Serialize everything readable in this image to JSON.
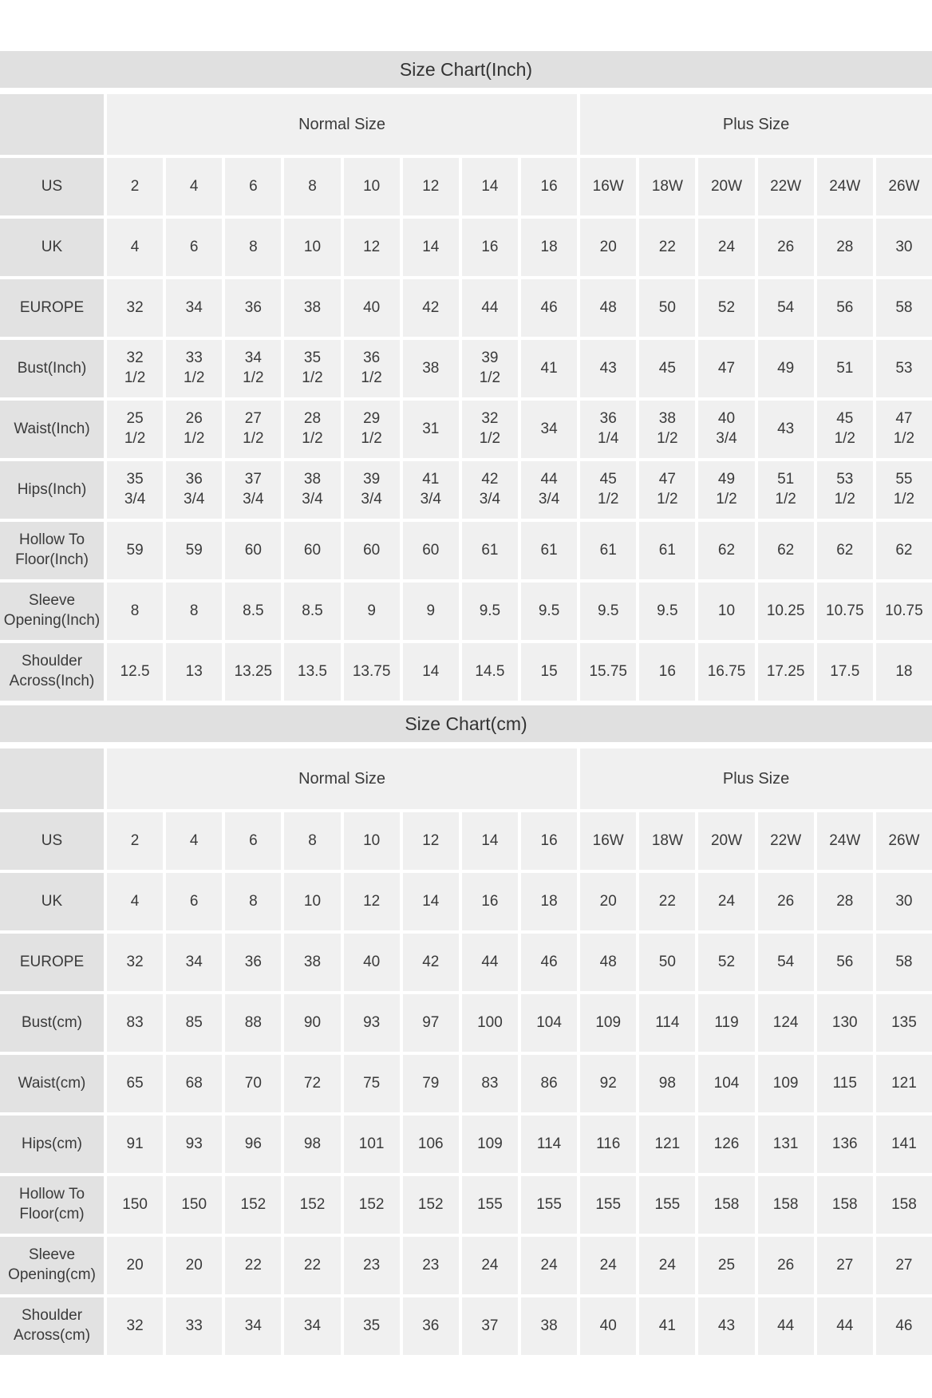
{
  "chart_data": [
    {
      "type": "table",
      "title": "Size Chart(Inch)",
      "column_groups": [
        {
          "label": "Normal Size",
          "span": 8
        },
        {
          "label": "Plus Size",
          "span": 6
        }
      ],
      "rows": [
        {
          "label": "US",
          "values": [
            "2",
            "4",
            "6",
            "8",
            "10",
            "12",
            "14",
            "16",
            "16W",
            "18W",
            "20W",
            "22W",
            "24W",
            "26W"
          ]
        },
        {
          "label": "UK",
          "values": [
            "4",
            "6",
            "8",
            "10",
            "12",
            "14",
            "16",
            "18",
            "20",
            "22",
            "24",
            "26",
            "28",
            "30"
          ]
        },
        {
          "label": "EUROPE",
          "values": [
            "32",
            "34",
            "36",
            "38",
            "40",
            "42",
            "44",
            "46",
            "48",
            "50",
            "52",
            "54",
            "56",
            "58"
          ]
        },
        {
          "label": "Bust(Inch)",
          "values": [
            "32\n1/2",
            "33\n1/2",
            "34\n1/2",
            "35\n1/2",
            "36\n1/2",
            "38",
            "39\n1/2",
            "41",
            "43",
            "45",
            "47",
            "49",
            "51",
            "53"
          ]
        },
        {
          "label": "Waist(Inch)",
          "values": [
            "25\n1/2",
            "26\n1/2",
            "27\n1/2",
            "28\n1/2",
            "29\n1/2",
            "31",
            "32\n1/2",
            "34",
            "36\n1/4",
            "38\n1/2",
            "40\n3/4",
            "43",
            "45\n1/2",
            "47\n1/2"
          ]
        },
        {
          "label": "Hips(Inch)",
          "values": [
            "35\n3/4",
            "36\n3/4",
            "37\n3/4",
            "38\n3/4",
            "39\n3/4",
            "41\n3/4",
            "42\n3/4",
            "44\n3/4",
            "45\n1/2",
            "47\n1/2",
            "49\n1/2",
            "51\n1/2",
            "53\n1/2",
            "55\n1/2"
          ]
        },
        {
          "label": "Hollow To Floor(Inch)",
          "values": [
            "59",
            "59",
            "60",
            "60",
            "60",
            "60",
            "61",
            "61",
            "61",
            "61",
            "62",
            "62",
            "62",
            "62"
          ]
        },
        {
          "label": "Sleeve Opening(Inch)",
          "values": [
            "8",
            "8",
            "8.5",
            "8.5",
            "9",
            "9",
            "9.5",
            "9.5",
            "9.5",
            "9.5",
            "10",
            "10.25",
            "10.75",
            "10.75"
          ]
        },
        {
          "label": "Shoulder Across(Inch)",
          "values": [
            "12.5",
            "13",
            "13.25",
            "13.5",
            "13.75",
            "14",
            "14.5",
            "15",
            "15.75",
            "16",
            "16.75",
            "17.25",
            "17.5",
            "18"
          ]
        }
      ]
    },
    {
      "type": "table",
      "title": "Size Chart(cm)",
      "column_groups": [
        {
          "label": "Normal Size",
          "span": 8
        },
        {
          "label": "Plus Size",
          "span": 6
        }
      ],
      "rows": [
        {
          "label": "US",
          "values": [
            "2",
            "4",
            "6",
            "8",
            "10",
            "12",
            "14",
            "16",
            "16W",
            "18W",
            "20W",
            "22W",
            "24W",
            "26W"
          ]
        },
        {
          "label": "UK",
          "values": [
            "4",
            "6",
            "8",
            "10",
            "12",
            "14",
            "16",
            "18",
            "20",
            "22",
            "24",
            "26",
            "28",
            "30"
          ]
        },
        {
          "label": "EUROPE",
          "values": [
            "32",
            "34",
            "36",
            "38",
            "40",
            "42",
            "44",
            "46",
            "48",
            "50",
            "52",
            "54",
            "56",
            "58"
          ]
        },
        {
          "label": "Bust(cm)",
          "values": [
            "83",
            "85",
            "88",
            "90",
            "93",
            "97",
            "100",
            "104",
            "109",
            "114",
            "119",
            "124",
            "130",
            "135"
          ]
        },
        {
          "label": "Waist(cm)",
          "values": [
            "65",
            "68",
            "70",
            "72",
            "75",
            "79",
            "83",
            "86",
            "92",
            "98",
            "104",
            "109",
            "115",
            "121"
          ]
        },
        {
          "label": "Hips(cm)",
          "values": [
            "91",
            "93",
            "96",
            "98",
            "101",
            "106",
            "109",
            "114",
            "116",
            "121",
            "126",
            "131",
            "136",
            "141"
          ]
        },
        {
          "label": "Hollow To Floor(cm)",
          "values": [
            "150",
            "150",
            "152",
            "152",
            "152",
            "152",
            "155",
            "155",
            "155",
            "155",
            "158",
            "158",
            "158",
            "158"
          ]
        },
        {
          "label": "Sleeve Opening(cm)",
          "values": [
            "20",
            "20",
            "22",
            "22",
            "23",
            "23",
            "24",
            "24",
            "24",
            "24",
            "25",
            "26",
            "27",
            "27"
          ]
        },
        {
          "label": "Shoulder Across(cm)",
          "values": [
            "32",
            "33",
            "34",
            "34",
            "35",
            "36",
            "37",
            "38",
            "40",
            "41",
            "43",
            "44",
            "44",
            "46"
          ]
        }
      ]
    }
  ],
  "colors": {
    "title_bar": "#e0e0e0",
    "label_cell": "#e2e2e2",
    "value_cell": "#f0f0f0",
    "text": "#3a3a3a",
    "gap": "#ffffff"
  }
}
